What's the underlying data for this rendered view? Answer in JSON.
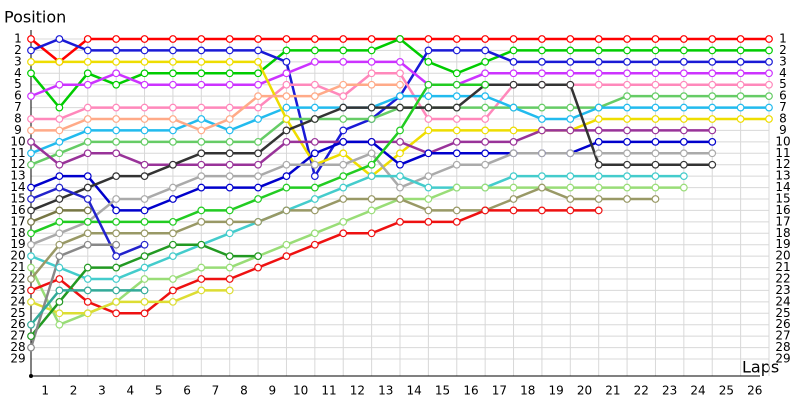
{
  "chart_data": {
    "type": "line",
    "y_title": "Position",
    "x_title": "Laps",
    "x": [
      0,
      1,
      2,
      3,
      4,
      5,
      6,
      7,
      8,
      9,
      10,
      11,
      12,
      13,
      14,
      15,
      16,
      17,
      18,
      19,
      20,
      21,
      22,
      23,
      24,
      25,
      26
    ],
    "xlim": [
      0,
      26
    ],
    "xticks": [
      1,
      2,
      3,
      4,
      5,
      6,
      7,
      8,
      9,
      10,
      11,
      12,
      13,
      14,
      15,
      16,
      17,
      18,
      19,
      20,
      21,
      22,
      23,
      24,
      25,
      26
    ],
    "ylim": [
      1,
      29
    ],
    "yticks": [
      1,
      2,
      3,
      4,
      5,
      6,
      7,
      8,
      9,
      10,
      11,
      12,
      13,
      14,
      15,
      16,
      17,
      18,
      19,
      20,
      21,
      22,
      23,
      24,
      25,
      26,
      27,
      28,
      29
    ],
    "inverted": true,
    "grid": true,
    "series": [
      {
        "color": "#ff0000",
        "values": [
          1,
          3,
          1,
          1,
          1,
          1,
          1,
          1,
          1,
          1,
          1,
          1,
          1,
          1,
          1,
          1,
          1,
          1,
          1,
          1,
          1,
          1,
          1,
          1,
          1,
          1,
          1
        ]
      },
      {
        "color": "#00cc00",
        "values": [
          4,
          7,
          4,
          5,
          4,
          4,
          4,
          4,
          4,
          2,
          2,
          2,
          2,
          1,
          3,
          4,
          3,
          2,
          2,
          2,
          2,
          2,
          2,
          2,
          2,
          2,
          2
        ]
      },
      {
        "color": "#1a1ad6",
        "values": [
          2,
          1,
          2,
          2,
          2,
          2,
          2,
          2,
          2,
          3,
          13,
          9,
          8,
          6,
          2,
          2,
          2,
          3,
          3,
          3,
          3,
          3,
          3,
          3,
          3,
          3,
          3
        ]
      },
      {
        "color": "#cc33ff",
        "values": [
          6,
          5,
          5,
          4,
          5,
          5,
          5,
          5,
          5,
          4,
          3,
          3,
          3,
          3,
          5,
          5,
          4,
          4,
          4,
          4,
          4,
          4,
          4,
          4,
          4,
          4,
          4
        ]
      },
      {
        "color": "#ff88bb",
        "values": [
          8,
          8,
          7,
          7,
          7,
          7,
          7,
          7,
          7,
          5,
          5,
          6,
          4,
          4,
          8,
          8,
          8,
          5,
          5,
          5,
          5,
          5,
          5,
          5,
          5,
          5,
          5
        ]
      },
      {
        "color": "#66cc66",
        "values": [
          12,
          11,
          10,
          10,
          10,
          10,
          10,
          10,
          10,
          8,
          8,
          8,
          8,
          7,
          7,
          7,
          7,
          7,
          7,
          7,
          7,
          6,
          6,
          6,
          6,
          6,
          6
        ]
      },
      {
        "color": "#22bbee",
        "values": [
          11,
          10,
          9,
          9,
          9,
          9,
          8,
          9,
          8,
          7,
          7,
          7,
          7,
          6,
          6,
          6,
          6,
          7,
          8,
          8,
          7,
          7,
          7,
          7,
          7,
          7,
          7
        ]
      },
      {
        "color": "#eedd00",
        "values": [
          3,
          3,
          3,
          3,
          3,
          3,
          3,
          3,
          3,
          8,
          12,
          11,
          13,
          11,
          9,
          9,
          9,
          9,
          9,
          9,
          8,
          8,
          8,
          8,
          8,
          8,
          8
        ]
      },
      {
        "color": "#993399",
        "values": [
          10,
          12,
          11,
          11,
          12,
          12,
          12,
          12,
          12,
          10,
          10,
          10,
          10,
          10,
          11,
          10,
          10,
          10,
          9,
          9,
          9,
          9,
          9,
          9,
          9,
          null,
          null
        ]
      },
      {
        "color": "#0000cc",
        "values": [
          14,
          13,
          13,
          16,
          16,
          15,
          14,
          14,
          14,
          13,
          11,
          10,
          10,
          12,
          11,
          11,
          11,
          11,
          11,
          11,
          10,
          10,
          10,
          10,
          10,
          null,
          null
        ]
      },
      {
        "color": "#aaaaaa",
        "values": [
          19,
          18,
          17,
          15,
          15,
          14,
          13,
          13,
          13,
          12,
          12,
          12,
          11,
          14,
          13,
          12,
          12,
          11,
          11,
          11,
          11,
          11,
          11,
          11,
          11,
          null,
          null
        ]
      },
      {
        "color": "#333333",
        "values": [
          16,
          15,
          14,
          13,
          13,
          12,
          11,
          11,
          11,
          9,
          8,
          7,
          7,
          7,
          7,
          7,
          5,
          5,
          5,
          5,
          12,
          12,
          12,
          12,
          12,
          null,
          null
        ]
      },
      {
        "color": "#44cccc",
        "values": [
          20,
          21,
          22,
          22,
          21,
          20,
          19,
          18,
          17,
          16,
          15,
          14,
          13,
          13,
          14,
          14,
          14,
          13,
          13,
          13,
          13,
          13,
          13,
          13,
          null,
          null,
          null
        ]
      },
      {
        "color": "#99dd77",
        "values": [
          21,
          26,
          25,
          24,
          22,
          22,
          21,
          21,
          20,
          19,
          18,
          17,
          16,
          15,
          15,
          14,
          14,
          14,
          14,
          14,
          14,
          14,
          14,
          14,
          null,
          null,
          null
        ]
      },
      {
        "color": "#999966",
        "values": [
          22,
          19,
          18,
          18,
          18,
          18,
          17,
          17,
          17,
          16,
          16,
          15,
          15,
          15,
          16,
          16,
          16,
          15,
          14,
          15,
          15,
          15,
          15,
          null,
          null,
          null,
          null
        ]
      },
      {
        "color": "#ee1111",
        "values": [
          23,
          22,
          24,
          25,
          25,
          23,
          22,
          22,
          21,
          20,
          19,
          18,
          18,
          17,
          17,
          17,
          16,
          16,
          16,
          16,
          16,
          null,
          null,
          null,
          null,
          null,
          null
        ]
      },
      {
        "color": "#22cc22",
        "values": [
          18,
          17,
          17,
          17,
          17,
          17,
          16,
          16,
          15,
          14,
          14,
          13,
          12,
          9,
          5,
          5,
          5,
          null,
          null,
          null,
          null,
          null,
          null,
          null,
          null,
          null,
          null
        ]
      },
      {
        "color": "#ffaa88",
        "values": [
          9,
          9,
          8,
          8,
          8,
          8,
          9,
          8,
          6,
          6,
          6,
          5,
          5,
          5,
          null,
          null,
          null,
          null,
          null,
          null,
          null,
          null,
          null,
          null,
          null,
          null,
          null
        ]
      },
      {
        "color": "#dddd33",
        "values": [
          24,
          25,
          25,
          24,
          24,
          24,
          23,
          23,
          null,
          null,
          null,
          null,
          null,
          null,
          null,
          null,
          null,
          null,
          null,
          null,
          null,
          null,
          null,
          null,
          null,
          null,
          null
        ]
      },
      {
        "color": "#229922",
        "values": [
          27,
          24,
          21,
          21,
          20,
          19,
          19,
          20,
          20,
          null,
          null,
          null,
          null,
          null,
          null,
          null,
          null,
          null,
          null,
          null,
          null,
          null,
          null,
          null,
          null,
          null,
          null
        ]
      },
      {
        "color": "#2222cc",
        "values": [
          15,
          14,
          15,
          20,
          19,
          null,
          null,
          null,
          null,
          null,
          null,
          null,
          null,
          null,
          null,
          null,
          null,
          null,
          null,
          null,
          null,
          null,
          null,
          null,
          null,
          null,
          null
        ]
      },
      {
        "color": "#888888",
        "values": [
          28,
          20,
          19,
          19,
          null,
          null,
          null,
          null,
          null,
          null,
          null,
          null,
          null,
          null,
          null,
          null,
          null,
          null,
          null,
          null,
          null,
          null,
          null,
          null,
          null,
          null,
          null
        ]
      },
      {
        "color": "#33aa99",
        "values": [
          26,
          23,
          23,
          23,
          23,
          null,
          null,
          null,
          null,
          null,
          null,
          null,
          null,
          null,
          null,
          null,
          null,
          null,
          null,
          null,
          null,
          null,
          null,
          null,
          null,
          null,
          null
        ]
      },
      {
        "color": "#777744",
        "values": [
          17,
          16,
          16,
          null,
          null,
          null,
          null,
          null,
          null,
          null,
          null,
          null,
          null,
          null,
          null,
          null,
          null,
          null,
          null,
          null,
          null,
          null,
          null,
          null,
          null,
          null,
          null
        ]
      }
    ]
  }
}
